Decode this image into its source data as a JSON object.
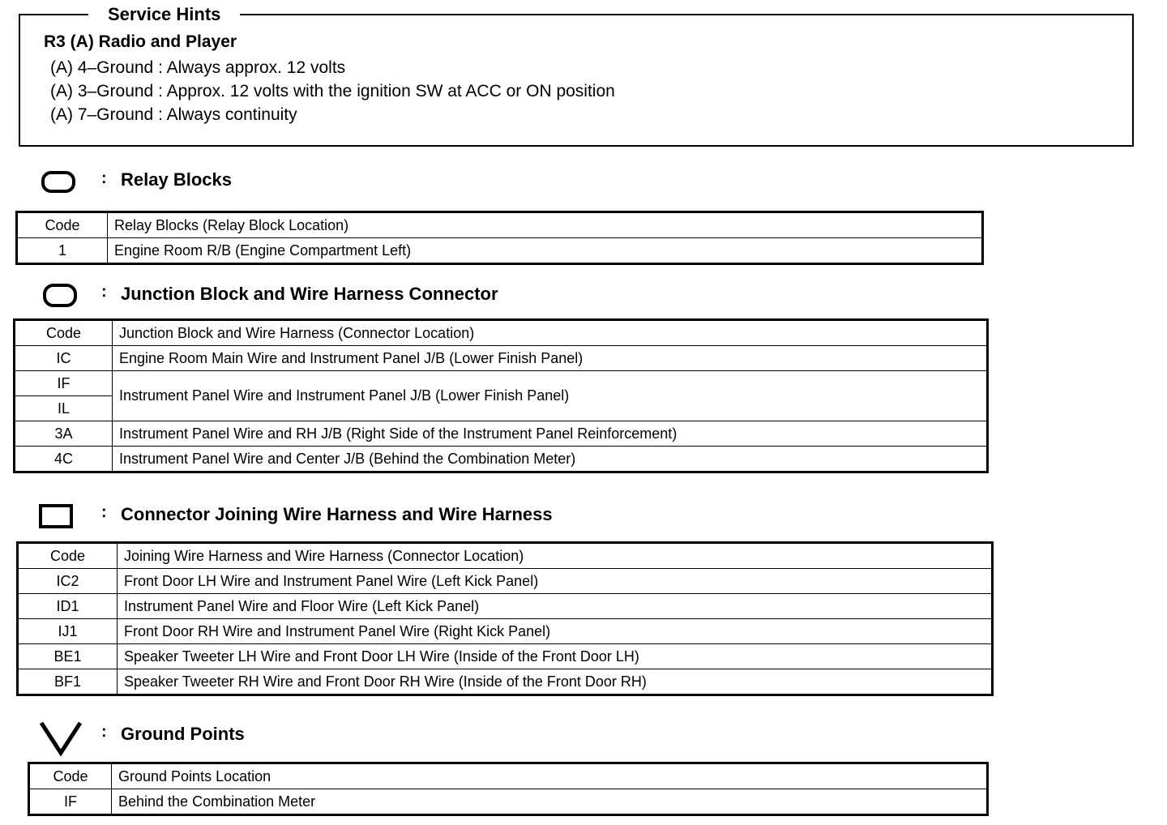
{
  "service_hints": {
    "title": "Service Hints",
    "subtitle": "R3 (A)  Radio and Player",
    "lines": [
      "(A)  4–Ground : Always approx. 12 volts",
      "(A)  3–Ground : Approx. 12 volts with the ignition SW at ACC or ON position",
      "(A)  7–Ground : Always continuity"
    ]
  },
  "colon": ":",
  "relay": {
    "icon": "rounded-rect-icon",
    "title": "Relay Blocks",
    "header": [
      "Code",
      "Relay Blocks (Relay Block Location)"
    ],
    "rows": [
      [
        "1",
        "Engine Room R/B (Engine Compartment Left)"
      ]
    ]
  },
  "junction": {
    "icon": "rounded-rect-dotted-icon",
    "title": "Junction Block and Wire Harness Connector",
    "header": [
      "Code",
      "Junction Block and Wire Harness (Connector Location)"
    ],
    "rows": [
      [
        "IC",
        "Engine Room Main Wire and Instrument Panel J/B (Lower Finish Panel)"
      ],
      [
        "IF",
        "Instrument Panel Wire and Instrument Panel J/B (Lower Finish Panel)"
      ],
      [
        "IL",
        ""
      ],
      [
        "3A",
        "Instrument Panel Wire and RH J/B (Right Side of the Instrument Panel Reinforcement)"
      ],
      [
        "4C",
        "Instrument Panel Wire and Center J/B (Behind the Combination Meter)"
      ]
    ]
  },
  "connector": {
    "icon": "rectangle-icon",
    "title": "Connector Joining Wire Harness and Wire Harness",
    "header": [
      "Code",
      "Joining Wire Harness and Wire Harness (Connector Location)"
    ],
    "rows": [
      [
        "IC2",
        "Front Door LH Wire and Instrument Panel Wire (Left Kick Panel)"
      ],
      [
        "ID1",
        "Instrument Panel Wire and Floor Wire (Left Kick Panel)"
      ],
      [
        "IJ1",
        "Front Door RH Wire and Instrument Panel Wire (Right Kick Panel)"
      ],
      [
        "BE1",
        "Speaker Tweeter LH Wire and Front Door LH Wire (Inside of the Front Door LH)"
      ],
      [
        "BF1",
        "Speaker Tweeter RH Wire and Front Door RH Wire (Inside of the Front Door RH)"
      ]
    ]
  },
  "ground": {
    "icon": "triangle-down-icon",
    "title": "Ground Points",
    "header": [
      "Code",
      "Ground Points Location"
    ],
    "rows": [
      [
        "IF",
        "Behind the Combination Meter"
      ]
    ]
  }
}
